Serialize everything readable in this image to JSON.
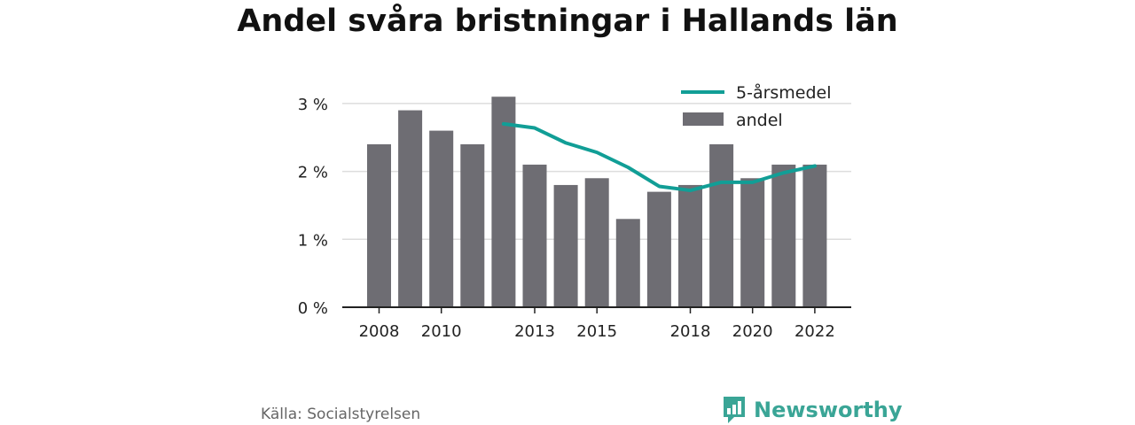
{
  "title": "Andel svåra bristningar i Hallands län",
  "source": "Källa: Socialstyrelsen",
  "brand": {
    "name": "Newsworthy",
    "icon": "bar-chart-speech-bubble-icon",
    "color": "#3aa596"
  },
  "chart_data": {
    "type": "bar",
    "categories": [
      2008,
      2009,
      2010,
      2011,
      2012,
      2013,
      2014,
      2015,
      2016,
      2017,
      2018,
      2019,
      2020,
      2021,
      2022
    ],
    "x_tick_labels": [
      "2008",
      "2010",
      "2013",
      "2015",
      "2018",
      "2020",
      "2022"
    ],
    "y_ticks": [
      0,
      1,
      2,
      3
    ],
    "y_tick_labels": [
      "0 %",
      "1 %",
      "2 %",
      "3 %"
    ],
    "ylim": [
      0,
      3.1
    ],
    "grid": true,
    "legend_position": "top-right",
    "series": [
      {
        "name": "andel",
        "type": "bar",
        "color": "#6e6d73",
        "values": [
          2.4,
          2.9,
          2.6,
          2.4,
          3.1,
          2.1,
          1.8,
          1.9,
          1.3,
          1.7,
          1.8,
          2.4,
          1.9,
          2.1,
          2.1
        ]
      },
      {
        "name": "5-årsmedel",
        "type": "line",
        "color": "#119e96",
        "values": [
          null,
          null,
          null,
          null,
          2.7,
          2.64,
          2.42,
          2.28,
          2.06,
          1.78,
          1.72,
          1.84,
          1.84,
          1.98,
          2.08
        ]
      }
    ]
  }
}
